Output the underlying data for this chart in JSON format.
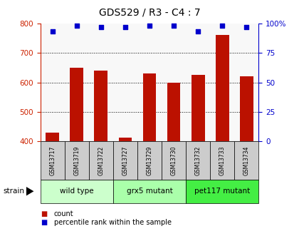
{
  "title": "GDS529 / R3 - C4 : 7",
  "samples": [
    "GSM13717",
    "GSM13719",
    "GSM13722",
    "GSM13727",
    "GSM13729",
    "GSM13730",
    "GSM13732",
    "GSM13733",
    "GSM13734"
  ],
  "counts": [
    430,
    650,
    640,
    412,
    630,
    600,
    625,
    762,
    620
  ],
  "percentiles": [
    93,
    98,
    97,
    97,
    98,
    98,
    93,
    98,
    97
  ],
  "groups": [
    {
      "label": "wild type",
      "start": 0,
      "end": 3,
      "color": "#ccffcc"
    },
    {
      "label": "grx5 mutant",
      "start": 3,
      "end": 6,
      "color": "#aaffaa"
    },
    {
      "label": "pet117 mutant",
      "start": 6,
      "end": 9,
      "color": "#44ee44"
    }
  ],
  "ylim_left": [
    400,
    800
  ],
  "yticks_left": [
    400,
    500,
    600,
    700,
    800
  ],
  "yticks_right": [
    0,
    25,
    50,
    75,
    100
  ],
  "bar_color": "#bb1100",
  "dot_color": "#0000cc",
  "left_axis_color": "#cc2200",
  "right_axis_color": "#0000cc",
  "sample_box_color": "#cccccc",
  "plot_bg": "#f8f8f8",
  "grid_color": "#000000"
}
